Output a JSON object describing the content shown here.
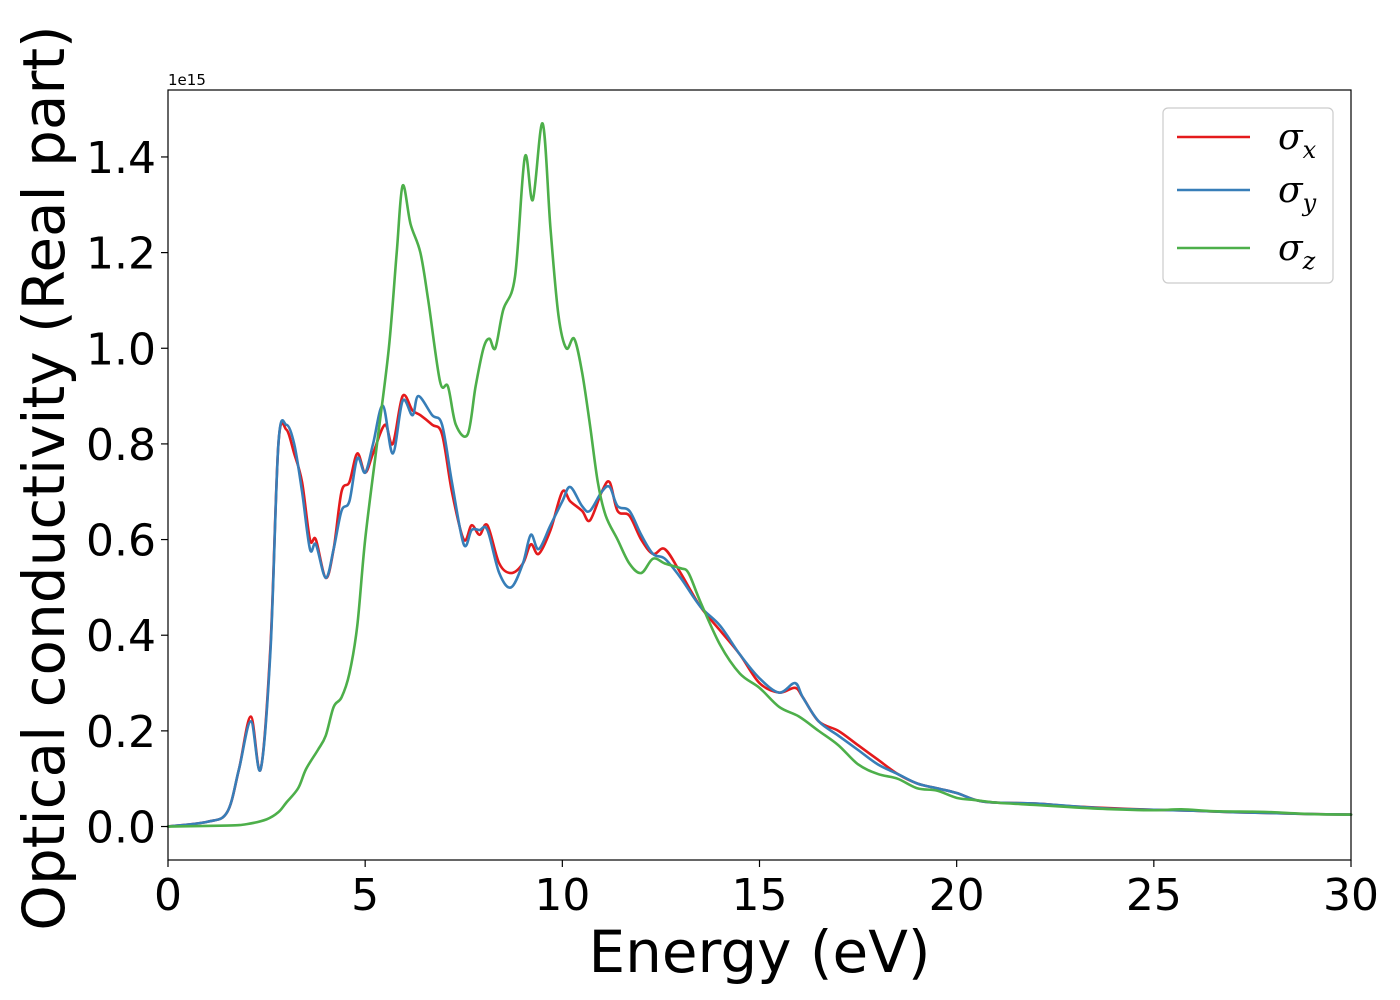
{
  "chart_data": {
    "type": "line",
    "xlabel": "Energy (eV)",
    "ylabel": "Optical conductivity (Real part)",
    "y_offset_text": "1e15",
    "y_scale": 1000000000000000.0,
    "xlim": [
      0,
      30
    ],
    "ylim": [
      -0.07,
      1.54
    ],
    "x_ticks": [
      0,
      5,
      10,
      15,
      20,
      25,
      30
    ],
    "x_tick_labels": [
      "0",
      "5",
      "10",
      "15",
      "20",
      "25",
      "30"
    ],
    "y_ticks": [
      0.0,
      0.2,
      0.4,
      0.6,
      0.8,
      1.0,
      1.2,
      1.4
    ],
    "y_tick_labels": [
      "0.0",
      "0.2",
      "0.4",
      "0.6",
      "0.8",
      "1.0",
      "1.2",
      "1.4"
    ],
    "grid": false,
    "legend_position": "top-right",
    "series": [
      {
        "name": "σ",
        "subscript": "x",
        "color": "#e41a1c",
        "x": [
          0,
          1.0,
          1.5,
          1.8,
          2.1,
          2.35,
          2.6,
          2.8,
          3.0,
          3.2,
          3.4,
          3.6,
          3.75,
          4.0,
          4.2,
          4.4,
          4.6,
          4.8,
          5.0,
          5.2,
          5.5,
          5.7,
          5.95,
          6.2,
          6.4,
          6.7,
          6.95,
          7.2,
          7.5,
          7.7,
          7.9,
          8.1,
          8.4,
          8.7,
          9.0,
          9.2,
          9.4,
          9.7,
          10.0,
          10.2,
          10.5,
          10.7,
          11.0,
          11.2,
          11.4,
          11.7,
          12.0,
          12.3,
          12.6,
          13.0,
          13.5,
          14.0,
          14.5,
          15.0,
          15.5,
          15.9,
          16.1,
          16.5,
          17.0,
          17.5,
          18.0,
          18.5,
          19.0,
          19.5,
          20.0,
          20.5,
          21.0,
          22.0,
          23.0,
          24.0,
          25.0,
          26.0,
          27.0,
          28.0,
          29.0,
          30.0
        ],
        "values": [
          0.0,
          0.01,
          0.03,
          0.12,
          0.23,
          0.12,
          0.38,
          0.8,
          0.83,
          0.78,
          0.72,
          0.6,
          0.6,
          0.52,
          0.58,
          0.7,
          0.72,
          0.78,
          0.74,
          0.78,
          0.84,
          0.8,
          0.9,
          0.87,
          0.86,
          0.84,
          0.82,
          0.7,
          0.6,
          0.63,
          0.61,
          0.63,
          0.55,
          0.53,
          0.55,
          0.59,
          0.57,
          0.62,
          0.7,
          0.68,
          0.66,
          0.64,
          0.7,
          0.72,
          0.66,
          0.65,
          0.6,
          0.57,
          0.58,
          0.53,
          0.46,
          0.41,
          0.36,
          0.3,
          0.28,
          0.29,
          0.27,
          0.22,
          0.2,
          0.17,
          0.14,
          0.11,
          0.09,
          0.08,
          0.07,
          0.055,
          0.05,
          0.048,
          0.042,
          0.038,
          0.035,
          0.033,
          0.03,
          0.028,
          0.026,
          0.025
        ]
      },
      {
        "name": "σ",
        "subscript": "y",
        "color": "#377eb8",
        "x": [
          0,
          1.0,
          1.5,
          1.8,
          2.1,
          2.35,
          2.6,
          2.8,
          3.0,
          3.2,
          3.4,
          3.6,
          3.75,
          4.0,
          4.2,
          4.4,
          4.6,
          4.8,
          5.0,
          5.2,
          5.45,
          5.7,
          5.95,
          6.2,
          6.35,
          6.7,
          6.95,
          7.2,
          7.5,
          7.7,
          7.9,
          8.1,
          8.4,
          8.7,
          9.0,
          9.2,
          9.4,
          9.7,
          10.0,
          10.2,
          10.5,
          10.7,
          11.0,
          11.2,
          11.4,
          11.7,
          12.0,
          12.3,
          12.6,
          13.0,
          13.5,
          14.0,
          14.5,
          15.0,
          15.5,
          15.9,
          16.1,
          16.5,
          17.0,
          17.5,
          18.0,
          18.5,
          19.0,
          19.5,
          20.0,
          20.5,
          21.0,
          22.0,
          23.0,
          24.0,
          25.0,
          26.0,
          27.0,
          28.0,
          29.0,
          30.0
        ],
        "values": [
          0.0,
          0.01,
          0.03,
          0.12,
          0.22,
          0.12,
          0.37,
          0.8,
          0.84,
          0.8,
          0.7,
          0.58,
          0.59,
          0.52,
          0.58,
          0.66,
          0.68,
          0.77,
          0.74,
          0.8,
          0.88,
          0.78,
          0.89,
          0.86,
          0.9,
          0.86,
          0.84,
          0.72,
          0.59,
          0.62,
          0.62,
          0.62,
          0.53,
          0.5,
          0.55,
          0.61,
          0.58,
          0.63,
          0.68,
          0.71,
          0.67,
          0.66,
          0.7,
          0.71,
          0.67,
          0.66,
          0.61,
          0.57,
          0.56,
          0.52,
          0.46,
          0.42,
          0.36,
          0.31,
          0.28,
          0.3,
          0.27,
          0.22,
          0.19,
          0.16,
          0.13,
          0.11,
          0.09,
          0.08,
          0.07,
          0.055,
          0.05,
          0.048,
          0.042,
          0.037,
          0.035,
          0.033,
          0.03,
          0.028,
          0.026,
          0.025
        ]
      },
      {
        "name": "σ",
        "subscript": "z",
        "color": "#4daf4a",
        "x": [
          0,
          1.5,
          2.0,
          2.5,
          2.8,
          3.0,
          3.3,
          3.5,
          3.8,
          4.0,
          4.2,
          4.4,
          4.6,
          4.8,
          5.0,
          5.3,
          5.6,
          5.8,
          5.95,
          6.15,
          6.4,
          6.6,
          6.9,
          7.1,
          7.3,
          7.6,
          7.8,
          8.0,
          8.15,
          8.3,
          8.5,
          8.8,
          9.05,
          9.25,
          9.5,
          9.7,
          9.9,
          10.1,
          10.3,
          10.5,
          10.7,
          10.9,
          11.1,
          11.4,
          11.7,
          12.0,
          12.3,
          12.6,
          13.0,
          13.2,
          13.5,
          14.0,
          14.5,
          15.0,
          15.5,
          16.0,
          16.5,
          17.0,
          17.5,
          18.0,
          18.5,
          19.0,
          19.5,
          20.0,
          20.5,
          21.0,
          22.0,
          23.0,
          24.0,
          25.0,
          25.7,
          26.5,
          27.5,
          28.0,
          29.0,
          30.0
        ],
        "values": [
          0.0,
          0.002,
          0.005,
          0.015,
          0.03,
          0.05,
          0.08,
          0.12,
          0.16,
          0.19,
          0.25,
          0.27,
          0.32,
          0.42,
          0.6,
          0.8,
          1.0,
          1.2,
          1.34,
          1.26,
          1.2,
          1.1,
          0.93,
          0.92,
          0.84,
          0.82,
          0.92,
          1.0,
          1.02,
          1.0,
          1.08,
          1.15,
          1.4,
          1.31,
          1.47,
          1.25,
          1.07,
          1.0,
          1.02,
          0.95,
          0.84,
          0.72,
          0.65,
          0.6,
          0.55,
          0.53,
          0.56,
          0.55,
          0.54,
          0.53,
          0.47,
          0.38,
          0.32,
          0.29,
          0.25,
          0.23,
          0.2,
          0.17,
          0.13,
          0.11,
          0.1,
          0.08,
          0.075,
          0.06,
          0.055,
          0.05,
          0.045,
          0.04,
          0.036,
          0.034,
          0.036,
          0.032,
          0.031,
          0.03,
          0.026,
          0.025
        ]
      }
    ]
  }
}
